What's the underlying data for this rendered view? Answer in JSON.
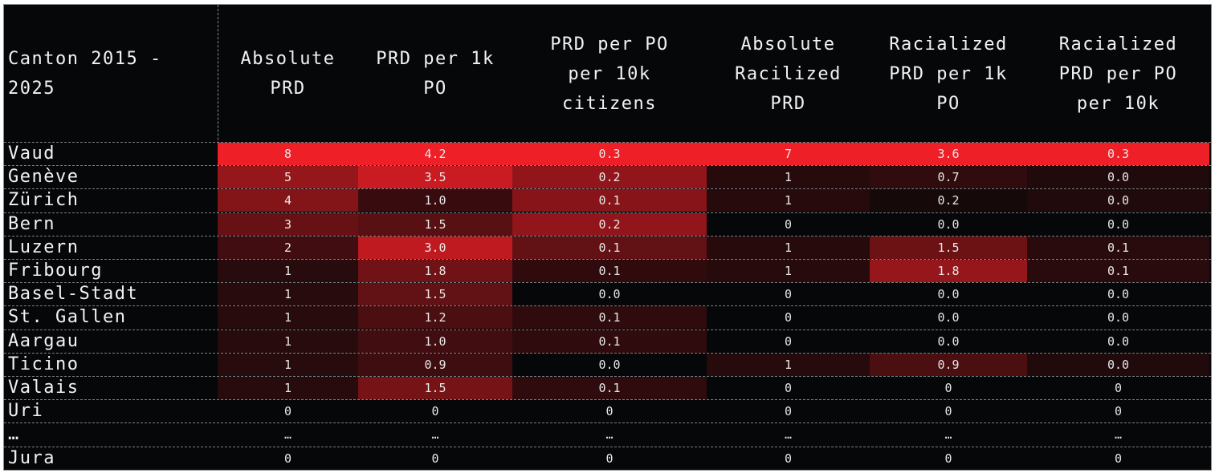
{
  "chart_data": {
    "type": "heatmap",
    "columns": [
      "Canton 2015 -\n2025",
      "Absolute\nPRD",
      "PRD per 1k\nPO",
      "PRD per PO\nper 10k\ncitizens",
      "Absolute\nRacilized\nPRD",
      "Racialized\nPRD per 1k\nPO",
      "Racialized\nPRD per PO\nper 10k"
    ],
    "rows": [
      {
        "canton": "Vaud",
        "values": [
          "8",
          "4.2",
          "0.3",
          "7",
          "3.6",
          "0.3"
        ],
        "intensity": [
          1.0,
          1.0,
          1.0,
          1.0,
          1.0,
          1.0
        ]
      },
      {
        "canton": "Genève",
        "values": [
          "5",
          "3.5",
          "0.2",
          "1",
          "0.7",
          "0.0"
        ],
        "intensity": [
          0.62,
          0.84,
          0.6,
          0.14,
          0.19,
          0.12
        ]
      },
      {
        "canton": "Zürich",
        "values": [
          "4",
          "1.0",
          "0.1",
          "1",
          "0.2",
          "0.0"
        ],
        "intensity": [
          0.54,
          0.22,
          0.56,
          0.14,
          0.07,
          0.12
        ]
      },
      {
        "canton": "Bern",
        "values": [
          "3",
          "1.5",
          "0.2",
          "0",
          "0.0",
          "0.0"
        ],
        "intensity": [
          0.42,
          0.36,
          0.6,
          0.0,
          0.0,
          0.0
        ]
      },
      {
        "canton": "Luzern",
        "values": [
          "2",
          "3.0",
          "0.1",
          "1",
          "1.5",
          "0.1"
        ],
        "intensity": [
          0.26,
          0.8,
          0.4,
          0.14,
          0.44,
          0.16
        ]
      },
      {
        "canton": "Fribourg",
        "values": [
          "1",
          "1.8",
          "0.1",
          "1",
          "1.8",
          "0.1"
        ],
        "intensity": [
          0.15,
          0.46,
          0.18,
          0.14,
          0.62,
          0.16
        ]
      },
      {
        "canton": "Basel-Stadt",
        "values": [
          "1",
          "1.5",
          "0.0",
          "0",
          "0.0",
          "0.0"
        ],
        "intensity": [
          0.15,
          0.4,
          0.0,
          0.0,
          0.0,
          0.0
        ]
      },
      {
        "canton": "St. Gallen",
        "values": [
          "1",
          "1.2",
          "0.1",
          "0",
          "0.0",
          "0.0"
        ],
        "intensity": [
          0.15,
          0.3,
          0.18,
          0.0,
          0.0,
          0.0
        ]
      },
      {
        "canton": "Aargau",
        "values": [
          "1",
          "1.0",
          "0.1",
          "0",
          "0.0",
          "0.0"
        ],
        "intensity": [
          0.15,
          0.26,
          0.18,
          0.0,
          0.0,
          0.0
        ]
      },
      {
        "canton": "Ticino",
        "values": [
          "1",
          "0.9",
          "0.0",
          "1",
          "0.9",
          "0.0"
        ],
        "intensity": [
          0.15,
          0.24,
          0.0,
          0.14,
          0.3,
          0.12
        ]
      },
      {
        "canton": "Valais",
        "values": [
          "1",
          "1.5",
          "0.1",
          "0",
          "0",
          "0"
        ],
        "intensity": [
          0.15,
          0.48,
          0.18,
          0.0,
          0.0,
          0.0
        ]
      },
      {
        "canton": "Uri",
        "values": [
          "0",
          "0",
          "0",
          "0",
          "0",
          "0"
        ],
        "intensity": [
          0,
          0,
          0,
          0,
          0,
          0
        ]
      },
      {
        "canton": "…",
        "values": [
          "…",
          "…",
          "…",
          "…",
          "…",
          "…"
        ],
        "intensity": [
          0,
          0,
          0,
          0,
          0,
          0
        ]
      },
      {
        "canton": "Jura",
        "values": [
          "0",
          "0",
          "0",
          "0",
          "0",
          "0"
        ],
        "intensity": [
          0,
          0,
          0,
          0,
          0,
          0
        ]
      }
    ],
    "colors": {
      "background": "#050708",
      "high": "#ee1f26",
      "text": "#f2f2f2"
    }
  }
}
